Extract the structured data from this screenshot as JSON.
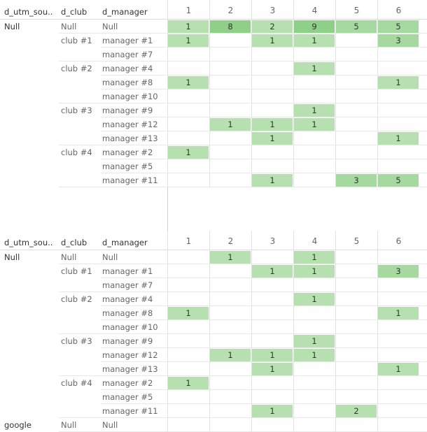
{
  "tables": [
    {
      "headers": {
        "source": "d_utm_sou..",
        "club": "d_club",
        "manager": "d_manager"
      },
      "columns": [
        "1",
        "2",
        "3",
        "4",
        "5",
        "6"
      ],
      "rows": [
        {
          "source": "Null",
          "club": "Null",
          "manager": "Null",
          "values": [
            "1",
            "8",
            "2",
            "9",
            "5",
            "5"
          ]
        },
        {
          "source": "",
          "club": "club #1",
          "manager": "manager #1",
          "values": [
            "1",
            "",
            "1",
            "1",
            "",
            "3"
          ]
        },
        {
          "source": "",
          "club": "",
          "manager": "manager #7",
          "values": [
            "",
            "",
            "",
            "",
            "",
            ""
          ]
        },
        {
          "source": "",
          "club": "club #2",
          "manager": "manager #4",
          "values": [
            "",
            "",
            "",
            "1",
            "",
            ""
          ]
        },
        {
          "source": "",
          "club": "",
          "manager": "manager #8",
          "values": [
            "1",
            "",
            "",
            "",
            "",
            "1"
          ]
        },
        {
          "source": "",
          "club": "",
          "manager": "manager #10",
          "values": [
            "",
            "",
            "",
            "",
            "",
            ""
          ]
        },
        {
          "source": "",
          "club": "club #3",
          "manager": "manager #9",
          "values": [
            "",
            "",
            "",
            "1",
            "",
            ""
          ]
        },
        {
          "source": "",
          "club": "",
          "manager": "manager #12",
          "values": [
            "",
            "1",
            "1",
            "1",
            "",
            ""
          ]
        },
        {
          "source": "",
          "club": "",
          "manager": "manager #13",
          "values": [
            "",
            "",
            "1",
            "",
            "",
            "1"
          ]
        },
        {
          "source": "",
          "club": "club #4",
          "manager": "manager #2",
          "values": [
            "1",
            "",
            "",
            "",
            "",
            ""
          ]
        },
        {
          "source": "",
          "club": "",
          "manager": "manager #5",
          "values": [
            "",
            "",
            "",
            "",
            "",
            ""
          ]
        },
        {
          "source": "",
          "club": "",
          "manager": "manager #11",
          "values": [
            "",
            "",
            "1",
            "",
            "3",
            "5"
          ]
        }
      ]
    },
    {
      "headers": {
        "source": "d_utm_sou..",
        "club": "d_club",
        "manager": "d_manager"
      },
      "columns": [
        "1",
        "2",
        "3",
        "4",
        "5",
        "6"
      ],
      "rows": [
        {
          "source": "Null",
          "club": "Null",
          "manager": "Null",
          "values": [
            "",
            "1",
            "",
            "1",
            "",
            ""
          ]
        },
        {
          "source": "",
          "club": "club #1",
          "manager": "manager #1",
          "values": [
            "",
            "",
            "1",
            "1",
            "",
            "3"
          ]
        },
        {
          "source": "",
          "club": "",
          "manager": "manager #7",
          "values": [
            "",
            "",
            "",
            "",
            "",
            ""
          ]
        },
        {
          "source": "",
          "club": "club #2",
          "manager": "manager #4",
          "values": [
            "",
            "",
            "",
            "1",
            "",
            ""
          ]
        },
        {
          "source": "",
          "club": "",
          "manager": "manager #8",
          "values": [
            "1",
            "",
            "",
            "",
            "",
            "1"
          ]
        },
        {
          "source": "",
          "club": "",
          "manager": "manager #10",
          "values": [
            "",
            "",
            "",
            "",
            "",
            ""
          ]
        },
        {
          "source": "",
          "club": "club #3",
          "manager": "manager #9",
          "values": [
            "",
            "",
            "",
            "1",
            "",
            ""
          ]
        },
        {
          "source": "",
          "club": "",
          "manager": "manager #12",
          "values": [
            "",
            "1",
            "1",
            "1",
            "",
            ""
          ]
        },
        {
          "source": "",
          "club": "",
          "manager": "manager #13",
          "values": [
            "",
            "",
            "1",
            "",
            "",
            "1"
          ]
        },
        {
          "source": "",
          "club": "club #4",
          "manager": "manager #2",
          "values": [
            "1",
            "",
            "",
            "",
            "",
            ""
          ]
        },
        {
          "source": "",
          "club": "",
          "manager": "manager #5",
          "values": [
            "",
            "",
            "",
            "",
            "",
            ""
          ]
        },
        {
          "source": "",
          "club": "",
          "manager": "manager #11",
          "values": [
            "",
            "",
            "1",
            "",
            "2",
            ""
          ]
        },
        {
          "source": "google",
          "club": "Null",
          "manager": "Null",
          "values": [
            "",
            "",
            "",
            "",
            "",
            ""
          ]
        }
      ]
    }
  ],
  "colors": {
    "low": "#b7e0b0",
    "mid": "#a6d99f",
    "high": "#8fd088",
    "grid": "#dddddd"
  }
}
